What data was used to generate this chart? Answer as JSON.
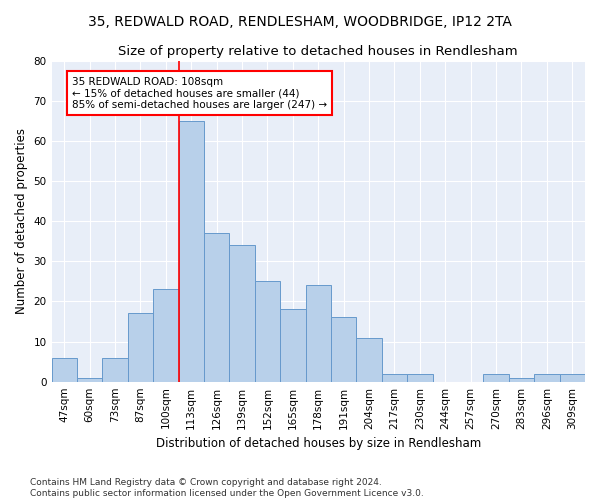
{
  "title1": "35, REDWALD ROAD, RENDLESHAM, WOODBRIDGE, IP12 2TA",
  "title2": "Size of property relative to detached houses in Rendlesham",
  "xlabel": "Distribution of detached houses by size in Rendlesham",
  "ylabel": "Number of detached properties",
  "footnote": "Contains HM Land Registry data © Crown copyright and database right 2024.\nContains public sector information licensed under the Open Government Licence v3.0.",
  "categories": [
    "47sqm",
    "60sqm",
    "73sqm",
    "87sqm",
    "100sqm",
    "113sqm",
    "126sqm",
    "139sqm",
    "152sqm",
    "165sqm",
    "178sqm",
    "191sqm",
    "204sqm",
    "217sqm",
    "230sqm",
    "244sqm",
    "257sqm",
    "270sqm",
    "283sqm",
    "296sqm",
    "309sqm"
  ],
  "values": [
    6,
    1,
    6,
    17,
    23,
    65,
    37,
    34,
    25,
    18,
    24,
    16,
    11,
    2,
    2,
    0,
    0,
    2,
    1,
    2,
    2
  ],
  "bar_color": "#b8d0ea",
  "bar_edge_color": "#6699cc",
  "annotation_text": "35 REDWALD ROAD: 108sqm\n← 15% of detached houses are smaller (44)\n85% of semi-detached houses are larger (247) →",
  "annotation_box_color": "white",
  "annotation_box_edge_color": "red",
  "vline_color": "red",
  "ylim": [
    0,
    80
  ],
  "yticks": [
    0,
    10,
    20,
    30,
    40,
    50,
    60,
    70,
    80
  ],
  "bg_color": "#e8eef8",
  "grid_color": "white",
  "title1_fontsize": 10,
  "title2_fontsize": 9.5,
  "axis_label_fontsize": 8.5,
  "tick_fontsize": 7.5,
  "annotation_fontsize": 7.5,
  "footnote_fontsize": 6.5,
  "vline_x_index": 4
}
